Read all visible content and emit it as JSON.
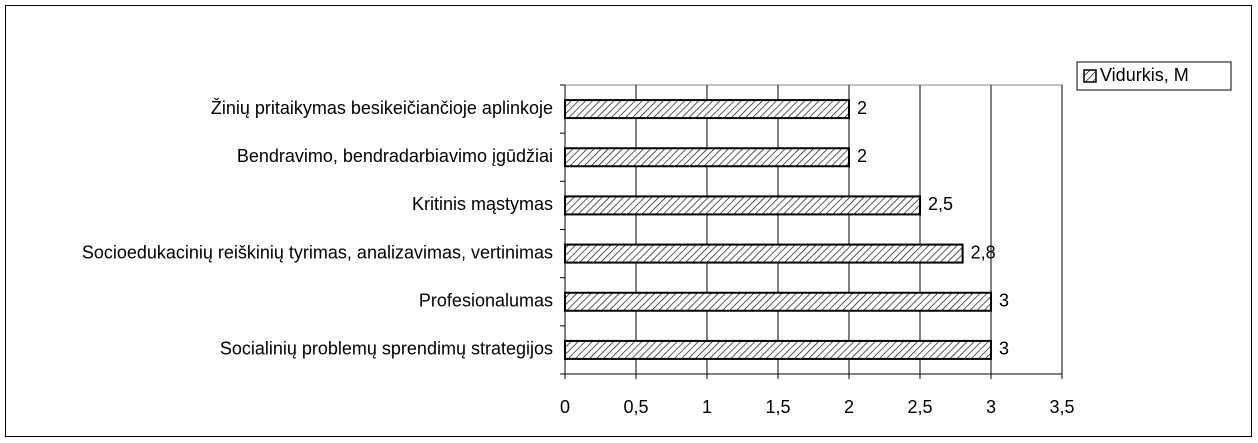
{
  "chart_data": {
    "type": "bar",
    "orientation": "horizontal",
    "categories": [
      "Žinių pritaikymas besikeičiančioje aplinkoje",
      "Bendravimo, bendradarbiavimo įgūdžiai",
      "Kritinis mąstymas",
      "Socioedukacinių reiškinių tyrimas, analizavimas, vertinimas",
      "Profesionalumas",
      "Socialinių problemų sprendimų strategijos"
    ],
    "series": [
      {
        "name": "Vidurkis, M",
        "color": "#000000",
        "hatch": "diagonal",
        "values": [
          2,
          2,
          2.5,
          2.8,
          3,
          3
        ],
        "value_labels": [
          "2",
          "2",
          "2,5",
          "2,8",
          "3",
          "3"
        ]
      }
    ],
    "xlim": [
      0,
      3.5
    ],
    "xticks": [
      0,
      {
        "value": 0.5,
        "label": "0,5"
      },
      1,
      {
        "value": 1.5,
        "label": "1,5"
      },
      2,
      {
        "value": 2.5,
        "label": "2,5"
      },
      3,
      {
        "value": 3.5,
        "label": "3,5"
      }
    ],
    "grid": true,
    "legend": "top-right"
  }
}
